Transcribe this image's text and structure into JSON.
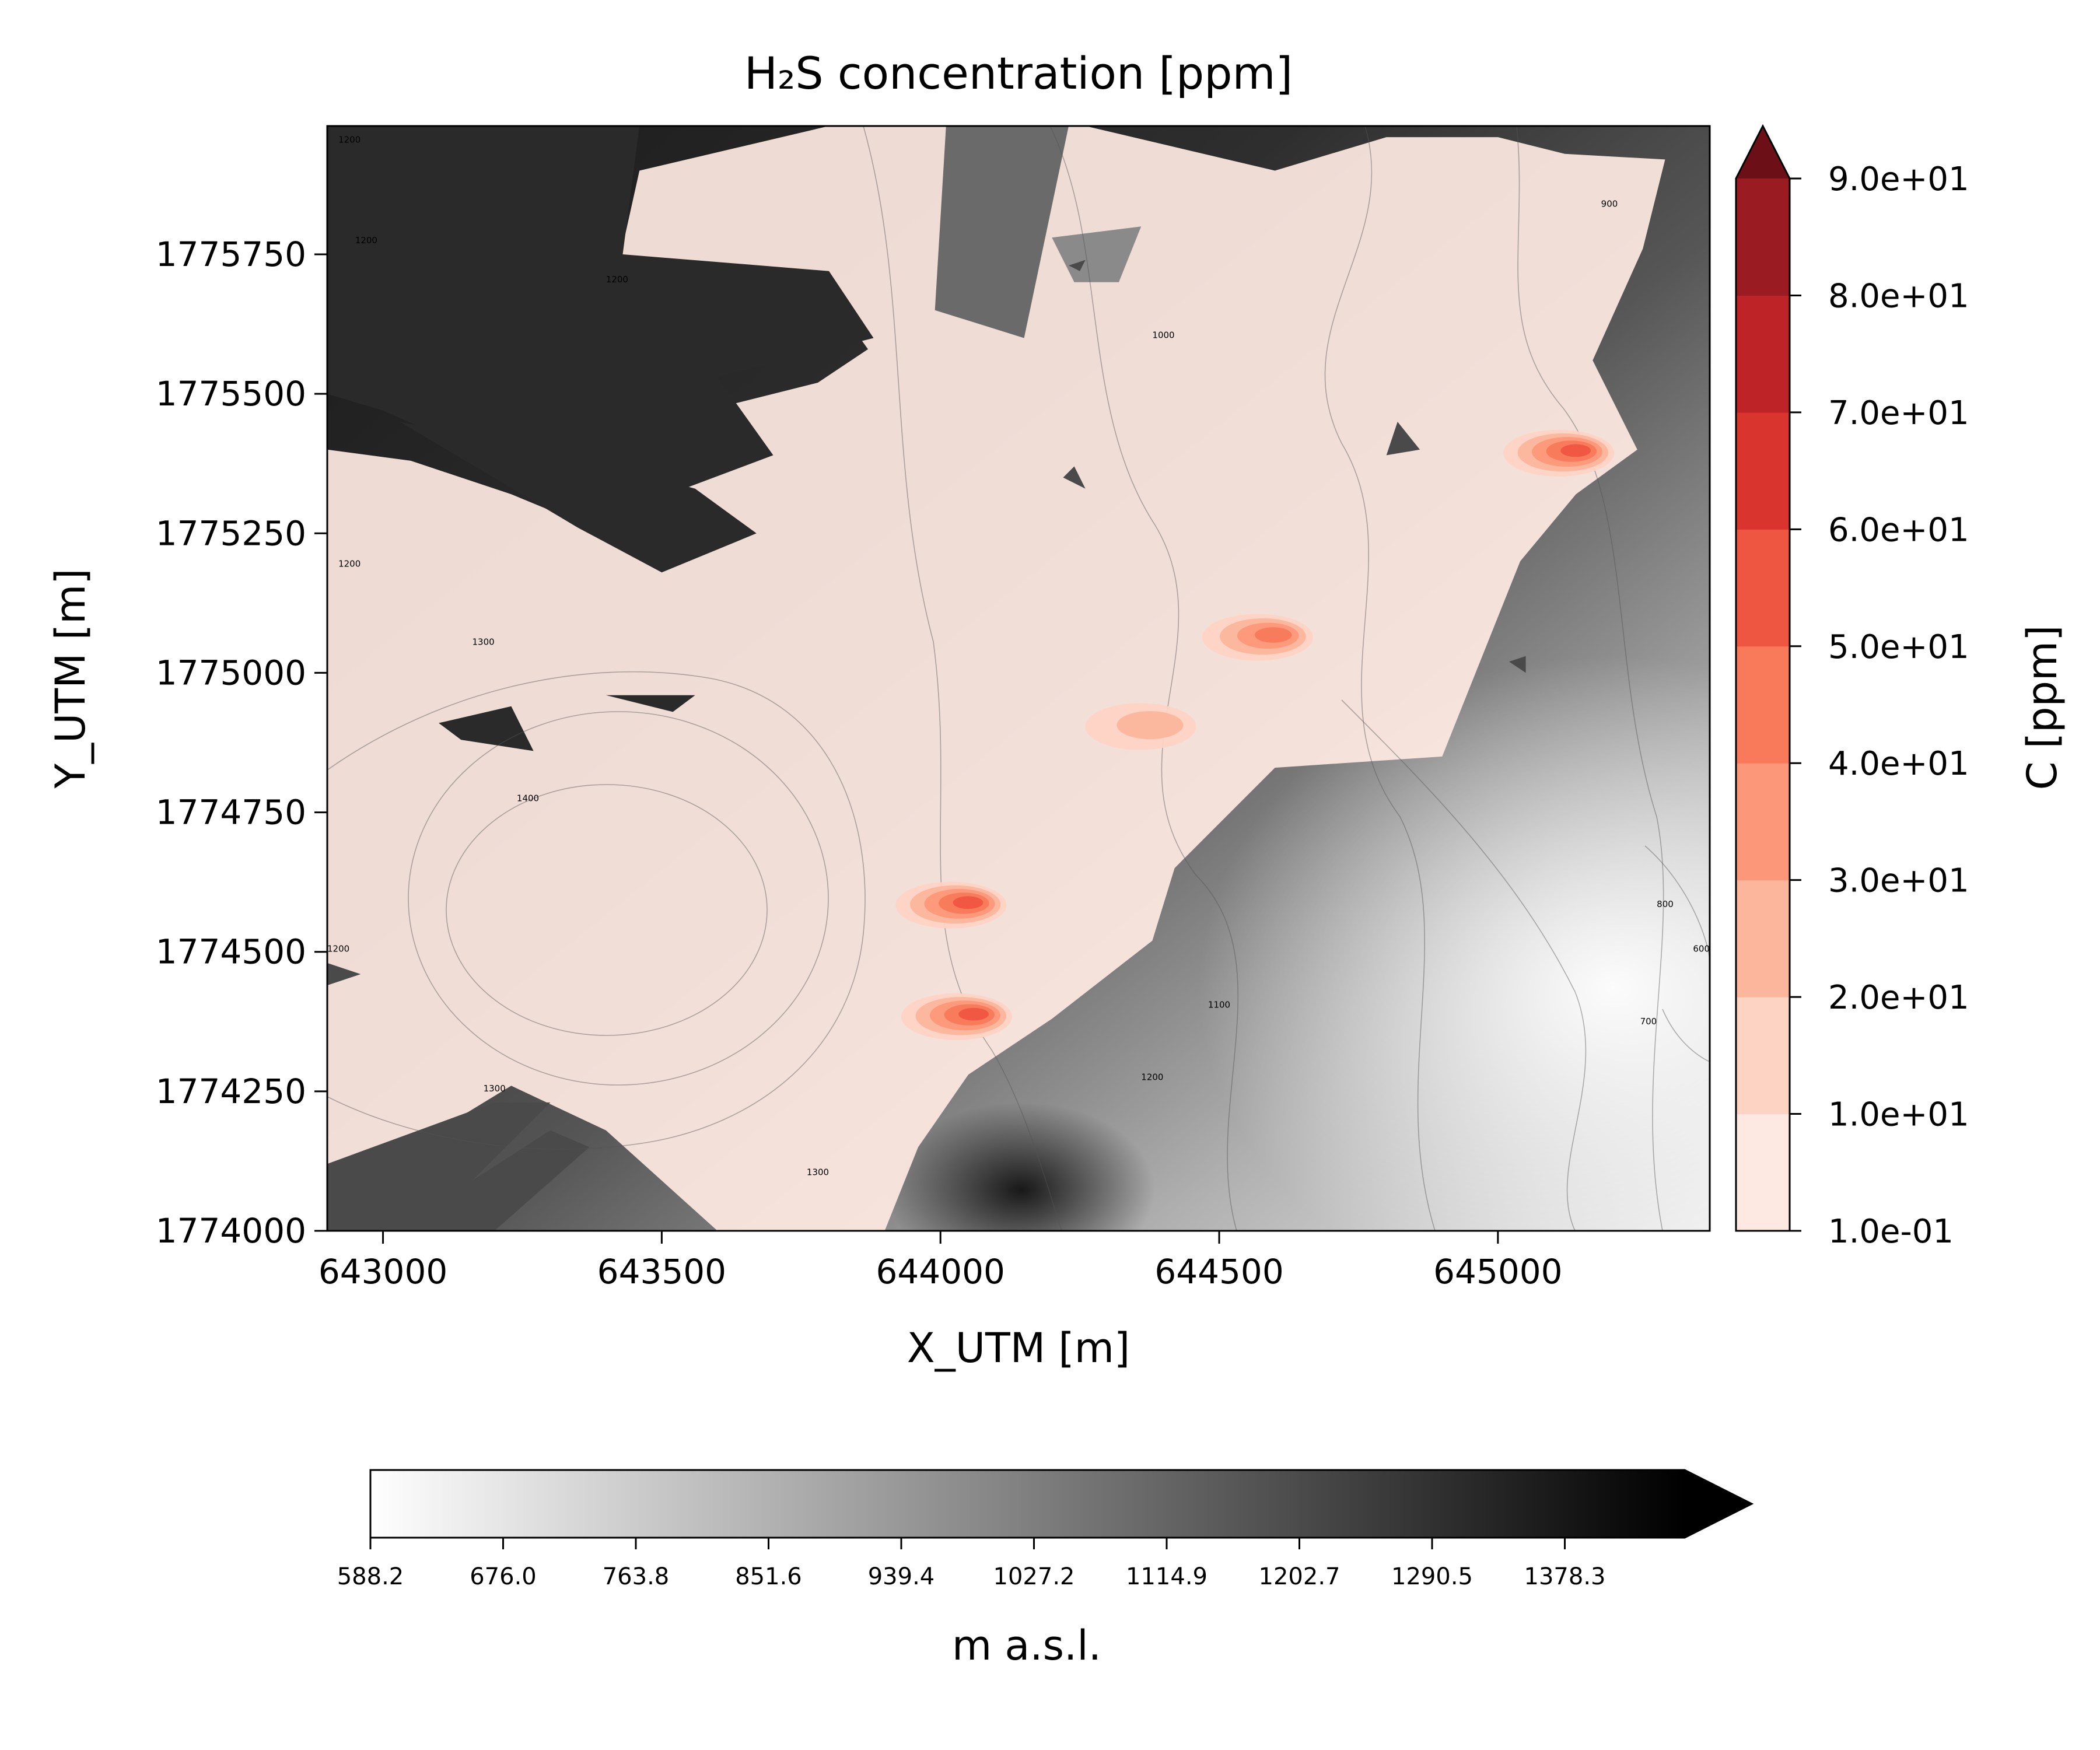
{
  "chart_data": {
    "type": "contour",
    "title": "H₂S concentration [ppm]",
    "xlabel": "X_UTM [m]",
    "ylabel": "Y_UTM [m]",
    "xlim": [
      642900,
      645380
    ],
    "ylim": [
      1774000,
      1775980
    ],
    "x_ticks": [
      643000,
      643500,
      644000,
      644500,
      645000
    ],
    "y_ticks": [
      1774000,
      1774250,
      1774500,
      1774750,
      1775000,
      1775250,
      1775500,
      1775750
    ],
    "grid": false,
    "concentration_colorbar": {
      "label": "C [ppm]",
      "levels": [
        0.1,
        10,
        20,
        30,
        40,
        50,
        60,
        70,
        80,
        90
      ],
      "tick_labels": [
        "1.0e-01",
        "1.0e+01",
        "2.0e+01",
        "3.0e+01",
        "4.0e+01",
        "5.0e+01",
        "6.0e+01",
        "7.0e+01",
        "8.0e+01",
        "9.0e+01"
      ],
      "colors": [
        "#fee9e2",
        "#fdd3c4",
        "#fcb69c",
        "#fc9879",
        "#f87a5a",
        "#ef5642",
        "#d9352e",
        "#bd2327",
        "#9a1b21"
      ],
      "extend_color": "#6d0f16",
      "extend": "max"
    },
    "elevation_colorbar": {
      "label": "m a.s.l.",
      "tick_labels": [
        "588.2",
        "676.0",
        "763.8",
        "851.6",
        "939.4",
        "1027.2",
        "1114.9",
        "1202.7",
        "1290.5",
        "1378.3"
      ],
      "min": 588.2,
      "step": 87.8,
      "extend": "max",
      "colors": [
        "#ffffff",
        "#000000"
      ]
    },
    "contour_labels": [
      {
        "text": "1200",
        "x": 642940,
        "y": 1775950
      },
      {
        "text": "1200",
        "x": 642970,
        "y": 1775770
      },
      {
        "text": "1200",
        "x": 643420,
        "y": 1775700
      },
      {
        "text": "1200",
        "x": 642940,
        "y": 1775190
      },
      {
        "text": "1200",
        "x": 642920,
        "y": 1774500
      },
      {
        "text": "1300",
        "x": 643180,
        "y": 1775050
      },
      {
        "text": "1300",
        "x": 643200,
        "y": 1774250
      },
      {
        "text": "1300",
        "x": 643780,
        "y": 1774100
      },
      {
        "text": "1400",
        "x": 643260,
        "y": 1774770
      },
      {
        "text": "1000",
        "x": 644400,
        "y": 1775600
      },
      {
        "text": "900",
        "x": 645200,
        "y": 1775835
      },
      {
        "text": "800",
        "x": 645300,
        "y": 1774580
      },
      {
        "text": "700",
        "x": 645270,
        "y": 1774370
      },
      {
        "text": "600",
        "x": 645365,
        "y": 1774500
      },
      {
        "text": "1100",
        "x": 644500,
        "y": 1774400
      },
      {
        "text": "1200",
        "x": 644380,
        "y": 1774270
      }
    ],
    "hotspots": [
      {
        "x": 645130,
        "y": 1775400,
        "peak": 50
      },
      {
        "x": 644590,
        "y": 1775070,
        "peak": 45
      },
      {
        "x": 644380,
        "y": 1774910,
        "peak": 20
      },
      {
        "x": 644040,
        "y": 1774590,
        "peak": 50
      },
      {
        "x": 644050,
        "y": 1774390,
        "peak": 55
      }
    ],
    "plume_outline": [
      [
        642900,
        1775400
      ],
      [
        643050,
        1775380
      ],
      [
        643230,
        1775320
      ],
      [
        643400,
        1775250
      ],
      [
        643550,
        1775200
      ],
      [
        643440,
        1775440
      ],
      [
        643620,
        1775480
      ],
      [
        643780,
        1775520
      ],
      [
        643870,
        1775580
      ],
      [
        643820,
        1775650
      ],
      [
        643600,
        1775690
      ],
      [
        643420,
        1775720
      ],
      [
        643460,
        1775900
      ],
      [
        643800,
        1775980
      ],
      [
        644260,
        1775980
      ],
      [
        644600,
        1775900
      ],
      [
        644800,
        1775960
      ],
      [
        645000,
        1775960
      ],
      [
        645120,
        1775930
      ],
      [
        645300,
        1775920
      ],
      [
        645260,
        1775760
      ],
      [
        645170,
        1775560
      ],
      [
        645250,
        1775400
      ],
      [
        645140,
        1775320
      ],
      [
        645040,
        1775200
      ],
      [
        644980,
        1775050
      ],
      [
        644900,
        1774850
      ],
      [
        644600,
        1774830
      ],
      [
        644420,
        1774650
      ],
      [
        644380,
        1774520
      ],
      [
        644200,
        1774380
      ],
      [
        644050,
        1774280
      ],
      [
        643960,
        1774150
      ],
      [
        643900,
        1774000
      ],
      [
        643600,
        1774000
      ],
      [
        643400,
        1774180
      ],
      [
        643230,
        1774260
      ],
      [
        643000,
        1774120
      ],
      [
        642900,
        1774100
      ]
    ],
    "terrain_patches": [
      [
        [
          642900,
          1775980
        ],
        [
          643460,
          1775980
        ],
        [
          643430,
          1775750
        ],
        [
          643800,
          1775720
        ],
        [
          643880,
          1775600
        ],
        [
          643600,
          1775530
        ],
        [
          643700,
          1775390
        ],
        [
          643460,
          1775300
        ],
        [
          643250,
          1775360
        ],
        [
          643000,
          1775470
        ],
        [
          642900,
          1775500
        ]
      ],
      [
        [
          643030,
          1775450
        ],
        [
          643350,
          1775260
        ],
        [
          643500,
          1775180
        ],
        [
          643670,
          1775250
        ],
        [
          643560,
          1775330
        ],
        [
          643380,
          1775380
        ]
      ],
      [
        [
          643100,
          1774910
        ],
        [
          643230,
          1774940
        ],
        [
          643270,
          1774860
        ],
        [
          643140,
          1774880
        ]
      ],
      [
        [
          643400,
          1774960
        ],
        [
          643560,
          1774960
        ],
        [
          643520,
          1774930
        ]
      ],
      [
        [
          644010,
          1775980
        ],
        [
          644230,
          1775980
        ],
        [
          644150,
          1775600
        ],
        [
          643990,
          1775650
        ]
      ],
      [
        [
          644200,
          1775780
        ],
        [
          644360,
          1775800
        ],
        [
          644320,
          1775700
        ],
        [
          644240,
          1775700
        ]
      ],
      [
        [
          644220,
          1775350
        ],
        [
          644240,
          1775370
        ],
        [
          644260,
          1775330
        ]
      ],
      [
        [
          642900,
          1774480
        ],
        [
          642960,
          1774460
        ],
        [
          642900,
          1774440
        ]
      ],
      [
        [
          642900,
          1774120
        ],
        [
          643200,
          1774230
        ],
        [
          643300,
          1774230
        ],
        [
          643130,
          1774060
        ],
        [
          643050,
          1774000
        ],
        [
          642900,
          1774000
        ]
      ],
      [
        [
          643020,
          1774000
        ],
        [
          643300,
          1774180
        ],
        [
          643370,
          1774150
        ],
        [
          643200,
          1774000
        ]
      ],
      [
        [
          644820,
          1775450
        ],
        [
          644800,
          1775390
        ],
        [
          644860,
          1775400
        ]
      ],
      [
        [
          645020,
          1775020
        ],
        [
          645050,
          1775030
        ],
        [
          645050,
          1775000
        ]
      ],
      [
        [
          644230,
          1775730
        ],
        [
          644260,
          1775740
        ],
        [
          644250,
          1775720
        ]
      ]
    ]
  }
}
